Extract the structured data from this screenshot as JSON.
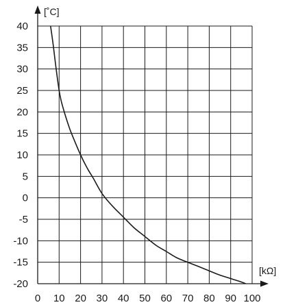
{
  "chart_data": {
    "type": "line",
    "title": "",
    "xlabel": "[kΩ]",
    "ylabel": "[˚C]",
    "xlim": [
      0,
      100
    ],
    "ylim": [
      -20,
      40
    ],
    "x_ticks": [
      "0",
      "10",
      "20",
      "30",
      "40",
      "50",
      "60",
      "70",
      "80",
      "90",
      "100"
    ],
    "y_ticks": [
      "40",
      "35",
      "30",
      "25",
      "20",
      "15",
      "10",
      "5",
      "0",
      "-5",
      "-10",
      "-15",
      "-20"
    ],
    "grid": true,
    "series": [
      {
        "x": [
          6,
          7,
          8,
          9,
          10,
          11,
          13,
          15,
          17,
          20,
          23,
          26,
          30,
          35,
          40,
          45,
          50,
          55,
          60,
          65,
          70,
          75,
          80,
          85,
          90,
          95,
          97
        ],
        "y": [
          40,
          36.5,
          32.5,
          28.5,
          25,
          22.5,
          19,
          16,
          13.5,
          10,
          7,
          4.5,
          1,
          -2,
          -4.5,
          -7,
          -9,
          -11,
          -12.5,
          -14,
          -15,
          -16,
          -17,
          -18,
          -18.8,
          -19.6,
          -20
        ]
      }
    ]
  }
}
